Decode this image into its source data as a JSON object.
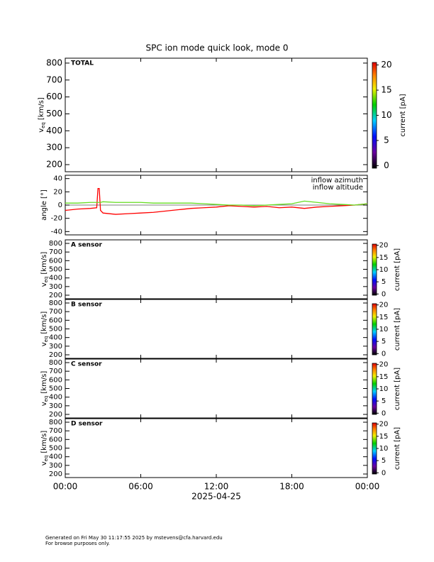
{
  "chart_data": [
    {
      "type": "spectrogram",
      "title": "SPC ion mode quick look, mode 0",
      "label": "TOTAL",
      "ylabel": [
        "v",
        "eq",
        "[km/s]"
      ],
      "ylim": [
        158,
        829
      ],
      "yticks": [
        200,
        300,
        400,
        500,
        600,
        700,
        800
      ],
      "colorbar": {
        "label": "current [pA]",
        "lim": [
          -0.5,
          20.5
        ],
        "ticks": [
          0,
          5,
          10,
          15,
          20
        ]
      }
    },
    {
      "type": "line",
      "ylabel": "angle [°]",
      "ylim": [
        -45,
        45
      ],
      "yticks": [
        -40,
        -20,
        0,
        20,
        40
      ],
      "legend": "upper right",
      "x": [
        0,
        1,
        2,
        2.5,
        2.6,
        2.7,
        2.8,
        3,
        4,
        5,
        6,
        7,
        8,
        9,
        10,
        11,
        12,
        13,
        14,
        15,
        16,
        17,
        18,
        19,
        20,
        21,
        22,
        23,
        24
      ],
      "series": [
        {
          "name": "inflow azimuth",
          "color": "#ff0000",
          "values": [
            -8,
            -6,
            -5,
            -4,
            25,
            25,
            -8,
            -12,
            -14,
            -13,
            -12,
            -11,
            -9,
            -7,
            -5,
            -4,
            -3,
            -1,
            -2,
            -3,
            -2,
            -4,
            -3,
            -5,
            -3,
            -2,
            -1,
            0,
            2
          ]
        },
        {
          "name": "inflow altitude",
          "color": "#66dd22",
          "values": [
            3,
            3,
            4,
            4,
            4,
            4,
            4,
            5,
            4,
            4,
            4,
            3,
            3,
            3,
            3,
            2,
            1,
            0,
            0,
            -1,
            0,
            1,
            2,
            6,
            4,
            2,
            1,
            0,
            2
          ]
        }
      ]
    },
    {
      "type": "spectrogram",
      "label": "A sensor",
      "ylabel": [
        "v",
        "eq",
        "[km/s]"
      ],
      "ylim": [
        159,
        841
      ],
      "yticks": [
        200,
        300,
        400,
        500,
        600,
        700,
        800
      ],
      "colorbar": {
        "label": "current [pA]",
        "lim": [
          -0.5,
          20.5
        ],
        "ticks": [
          0,
          5,
          10,
          15,
          20
        ]
      }
    },
    {
      "type": "spectrogram",
      "label": "B sensor",
      "ylabel": [
        "v",
        "eq",
        "[km/s]"
      ],
      "ylim": [
        159,
        841
      ],
      "yticks": [
        200,
        300,
        400,
        500,
        600,
        700,
        800
      ],
      "colorbar": {
        "label": "current [pA]",
        "lim": [
          -0.5,
          20.5
        ],
        "ticks": [
          0,
          5,
          10,
          15,
          20
        ]
      }
    },
    {
      "type": "spectrogram",
      "label": "C sensor",
      "ylabel": [
        "v",
        "eq",
        "[km/s]"
      ],
      "ylim": [
        159,
        841
      ],
      "yticks": [
        200,
        300,
        400,
        500,
        600,
        700,
        800
      ],
      "colorbar": {
        "label": "current [pA]",
        "lim": [
          -0.5,
          20.5
        ],
        "ticks": [
          0,
          5,
          10,
          15,
          20
        ]
      }
    },
    {
      "type": "spectrogram",
      "label": "D sensor",
      "ylabel": [
        "v",
        "eq",
        "[km/s]"
      ],
      "ylim": [
        159,
        841
      ],
      "yticks": [
        200,
        300,
        400,
        500,
        600,
        700,
        800
      ],
      "colorbar": {
        "label": "current [pA]",
        "lim": [
          -0.5,
          20.5
        ],
        "ticks": [
          0,
          5,
          10,
          15,
          20
        ]
      },
      "xlabel": "2025-04-25",
      "xlim": [
        0,
        24
      ],
      "xticks": [
        {
          "value": 0,
          "label": "00:00"
        },
        {
          "value": 6,
          "label": "06:00"
        },
        {
          "value": 12,
          "label": "12:00"
        },
        {
          "value": 18,
          "label": "18:00"
        },
        {
          "value": 24,
          "label": "00:00"
        }
      ]
    }
  ],
  "footer": [
    "Generated on Fri May 30 11:17:55 2025 by mstevens@cfa.harvard.edu",
    "For browse purposes only."
  ]
}
